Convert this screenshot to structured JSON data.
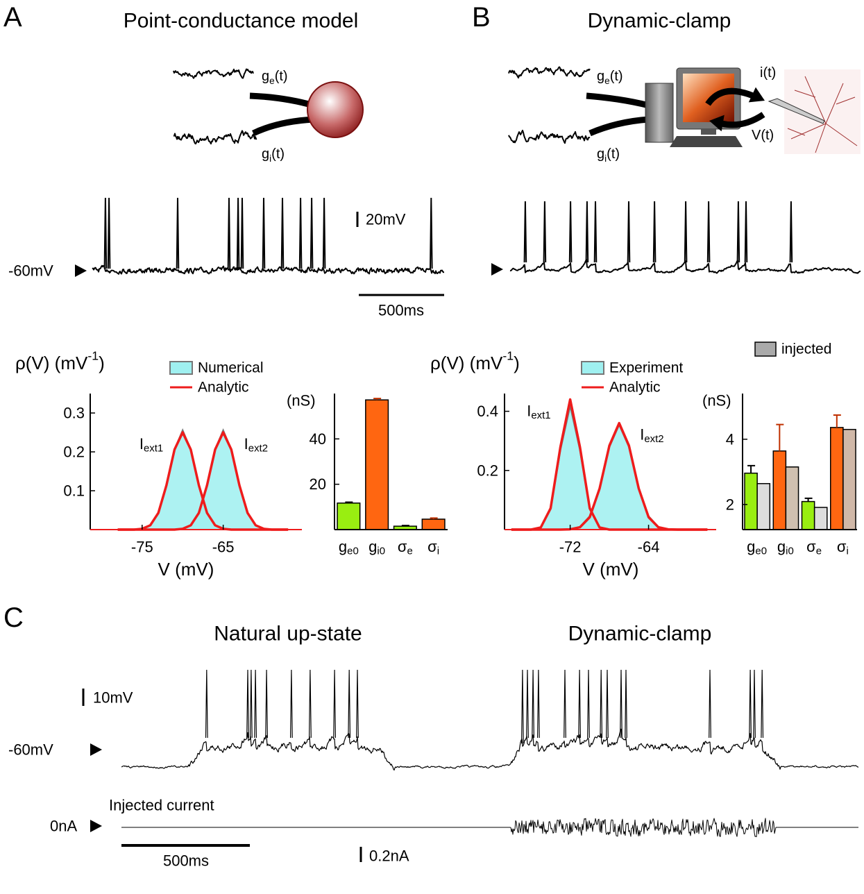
{
  "panel_a": {
    "label": "A",
    "title": "Point-conductance model",
    "input_e": {
      "text": "g",
      "sub": "e",
      "end": "(t)"
    },
    "input_i": {
      "text": "g",
      "sub": "i",
      "end": "(t)"
    },
    "rest_label": "-60mV",
    "scale_v": "20mV",
    "scale_t": "500ms",
    "trace": {
      "spike_times_ms": [
        77,
        98,
        500,
        801,
        854,
        878,
        1004,
        1114,
        1220,
        1285,
        1358,
        1985
      ]
    }
  },
  "panel_b": {
    "label": "B",
    "title": "Dynamic-clamp",
    "input_e": {
      "text": "g",
      "sub": "e",
      "end": "(t)"
    },
    "input_i": {
      "text": "g",
      "sub": "i",
      "end": "(t)"
    },
    "output_i": "i(t)",
    "output_v": "V(t)",
    "trace": {
      "spike_times_ms": [
        89,
        203,
        354,
        451,
        500,
        695,
        846,
        1029,
        1163,
        1337,
        1382,
        1646
      ]
    }
  },
  "chart_data": [
    {
      "type": "density",
      "y_label": {
        "text": "ρ(V) (mV",
        "sup": "-1",
        "end": ")"
      },
      "x_label": "V (mV)",
      "x": [
        -78,
        -77,
        -76,
        -75,
        -74,
        -73,
        -72,
        -71,
        -70,
        -69,
        -68,
        -67,
        -66,
        -65,
        -64,
        -63,
        -62,
        -61,
        -60,
        -59,
        -58,
        -57
      ],
      "series": [
        {
          "name": "Numerical",
          "color": "#9ff0f0",
          "style": "area",
          "curves": [
            [
              0,
              0,
              0,
              0.002,
              0.011,
              0.043,
              0.114,
              0.206,
              0.255,
              0.206,
              0.114,
              0.043,
              0.011,
              0.002,
              0,
              0,
              0,
              0,
              0,
              0,
              0,
              0
            ],
            [
              0,
              0,
              0,
              0,
              0,
              0,
              0,
              0,
              0.002,
              0.011,
              0.043,
              0.114,
              0.206,
              0.255,
              0.206,
              0.114,
              0.043,
              0.011,
              0.002,
              0,
              0,
              0
            ]
          ]
        },
        {
          "name": "Analytic",
          "color": "#ee1c1c",
          "style": "line",
          "curves": [
            [
              0,
              0,
              0,
              0.002,
              0.011,
              0.043,
              0.114,
              0.206,
              0.25,
              0.206,
              0.114,
              0.043,
              0.011,
              0.002,
              0,
              0,
              0,
              0,
              0,
              0,
              0,
              0
            ],
            [
              0,
              0,
              0,
              0,
              0,
              0,
              0,
              0,
              0.002,
              0.011,
              0.043,
              0.114,
              0.206,
              0.25,
              0.206,
              0.114,
              0.043,
              0.011,
              0.002,
              0,
              0,
              0
            ]
          ]
        }
      ],
      "annotations": [
        {
          "text": "I",
          "sub": "ext1"
        },
        {
          "text": "I",
          "sub": "ext2"
        }
      ],
      "xlim": [
        -81.4,
        -55.3
      ],
      "ylim": [
        0,
        0.35
      ],
      "xticks": [
        -75,
        -65
      ],
      "yticks": [
        0.1,
        0.2,
        0.3
      ]
    },
    {
      "type": "bar",
      "y_label": "(nS)",
      "categories": [
        {
          "text": "g",
          "sub": "e0"
        },
        {
          "text": "g",
          "sub": "i0"
        },
        {
          "text": "σ",
          "sub": "e"
        },
        {
          "text": "σ",
          "sub": "i"
        }
      ],
      "series": [
        {
          "colors": [
            "#99ee11",
            "#ff6611",
            "#99ee11",
            "#ff6611"
          ],
          "values": [
            11.7,
            57.2,
            1.5,
            4.6
          ],
          "errors": [
            0.4,
            0.6,
            0.3,
            0.5
          ]
        }
      ],
      "ylim": [
        0,
        60
      ],
      "yticks": [
        20,
        40
      ]
    },
    {
      "type": "density",
      "y_label": {
        "text": "ρ(V) (mV",
        "sup": "-1",
        "end": ")"
      },
      "x_label": "V (mV)",
      "x": [
        -78,
        -77,
        -76,
        -75,
        -74,
        -73,
        -72,
        -71,
        -70,
        -69,
        -68,
        -67,
        -66,
        -65,
        -64,
        -63,
        -62,
        -61,
        -60,
        -59,
        -58
      ],
      "series": [
        {
          "name": "Experiment",
          "color": "#9ff0f0",
          "style": "area",
          "curves": [
            [
              0,
              0,
              0,
              0.007,
              0.07,
              0.27,
              0.42,
              0.27,
              0.07,
              0.007,
              0,
              0,
              0,
              0,
              0,
              0,
              0,
              0,
              0,
              0,
              0
            ],
            [
              0,
              0,
              0,
              0,
              0,
              0,
              0.001,
              0.009,
              0.045,
              0.14,
              0.28,
              0.355,
              0.28,
              0.14,
              0.045,
              0.009,
              0.001,
              0,
              0,
              0,
              0
            ]
          ]
        },
        {
          "name": "Analytic",
          "color": "#ee1c1c",
          "style": "line",
          "curves": [
            [
              0,
              0,
              0,
              0.007,
              0.072,
              0.279,
              0.44,
              0.279,
              0.072,
              0.007,
              0,
              0,
              0,
              0,
              0,
              0,
              0,
              0,
              0,
              0,
              0
            ],
            [
              0,
              0,
              0,
              0,
              0,
              0,
              0.001,
              0.008,
              0.042,
              0.139,
              0.284,
              0.36,
              0.284,
              0.139,
              0.042,
              0.008,
              0.001,
              0,
              0,
              0,
              0
            ]
          ]
        }
      ],
      "annotations": [
        {
          "text": "I",
          "sub": "ext1"
        },
        {
          "text": "I",
          "sub": "ext2"
        }
      ],
      "xlim": [
        -78.7,
        -57.1
      ],
      "ylim": [
        0,
        0.46
      ],
      "xticks": [
        -72,
        -64
      ],
      "yticks": [
        0.2,
        0.4
      ]
    },
    {
      "type": "bar",
      "y_label": "(nS)",
      "categories": [
        {
          "text": "g",
          "sub": "e0"
        },
        {
          "text": "g",
          "sub": "i0"
        },
        {
          "text": "σ",
          "sub": "e"
        },
        {
          "text": "σ",
          "sub": "i"
        }
      ],
      "series": [
        {
          "colors": [
            "#99ee11",
            "#ff6611",
            "#99ee11",
            "#ff6611"
          ],
          "values": [
            2.96,
            3.64,
            2.09,
            4.36
          ],
          "errors": [
            0.23,
            0.81,
            0.1,
            0.38
          ]
        },
        {
          "name": "injected",
          "color": "#aaaaaa",
          "colors": [
            "#dddddd",
            "#d0c0b0",
            "#dddddd",
            "#d0b8a8"
          ],
          "values": [
            2.64,
            3.15,
            1.91,
            4.3
          ]
        }
      ],
      "ylim": [
        1.23,
        5.4
      ],
      "yticks": [
        2,
        4
      ]
    }
  ],
  "panel_c": {
    "label": "C",
    "natural_title": "Natural up-state",
    "clamp_title": "Dynamic-clamp",
    "scale_v": "10mV",
    "rest_label": "-60mV",
    "current_label": "Injected current",
    "zero_label": "0nA",
    "scale_t": "500ms",
    "scale_i": "0.2nA",
    "vm_trace": {
      "up_states_ms": [
        [
          257,
          1068
        ],
        [
          1514,
          2568
        ]
      ],
      "spike_times_ms": [
        332,
        492,
        505,
        522,
        565,
        662,
        735,
        830,
        887,
        919,
        1562,
        1581,
        1603,
        1624,
        1727,
        1784,
        1819,
        1868,
        1892,
        1946,
        1965,
        2292,
        2449,
        2465,
        2495
      ]
    },
    "current_trace": {
      "window_ms": [
        1514,
        2546
      ]
    }
  }
}
